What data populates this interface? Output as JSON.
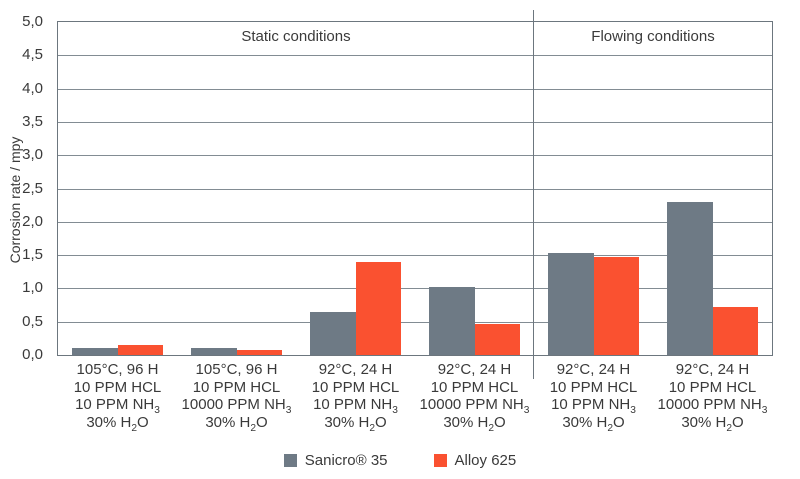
{
  "chart_data": {
    "type": "bar",
    "title": "",
    "ylabel": "Corrosion rate / mpy",
    "xlabel": "",
    "ylim": [
      0,
      5
    ],
    "ytick_step": 0.5,
    "grid": true,
    "legend_position": "bottom",
    "yticks": [
      {
        "v": 0.0,
        "label": "0,0"
      },
      {
        "v": 0.5,
        "label": "0,5"
      },
      {
        "v": 1.0,
        "label": "1,0"
      },
      {
        "v": 1.5,
        "label": "1,5"
      },
      {
        "v": 2.0,
        "label": "2,0"
      },
      {
        "v": 2.5,
        "label": "2,5"
      },
      {
        "v": 3.0,
        "label": "3,0"
      },
      {
        "v": 3.5,
        "label": "3,5"
      },
      {
        "v": 4.0,
        "label": "4,0"
      },
      {
        "v": 4.5,
        "label": "4,5"
      },
      {
        "v": 5.0,
        "label": "5,0"
      }
    ],
    "sections": [
      {
        "label": "Static conditions",
        "group_span": 4
      },
      {
        "label": "Flowing conditions",
        "group_span": 2
      }
    ],
    "categories": [
      {
        "lines": [
          "105°C, 96 H",
          "10 PPM HCL",
          "10 PPM NH₃",
          "30% H₂O"
        ]
      },
      {
        "lines": [
          "105°C, 96 H",
          "10 PPM HCL",
          "10000 PPM NH₃",
          "30% H₂O"
        ]
      },
      {
        "lines": [
          "92°C, 24 H",
          "10 PPM HCL",
          "10 PPM NH₃",
          "30% H₂O"
        ]
      },
      {
        "lines": [
          "92°C, 24 H",
          "10 PPM HCL",
          "10000 PPM NH₃",
          "30% H₂O"
        ]
      },
      {
        "lines": [
          "92°C, 24 H",
          "10 PPM HCL",
          "10 PPM NH₃",
          "30% H₂O"
        ]
      },
      {
        "lines": [
          "92°C, 24 H",
          "10 PPM HCL",
          "10000 PPM NH₃",
          "30% H₂O"
        ]
      }
    ],
    "series": [
      {
        "name": "Sanicro® 35",
        "color": "#6E7A85",
        "values": [
          0.1,
          0.1,
          0.65,
          1.02,
          1.53,
          2.3
        ]
      },
      {
        "name": "Alloy 625",
        "color": "#FA5130",
        "values": [
          0.15,
          0.07,
          1.4,
          0.46,
          1.47,
          0.72
        ]
      }
    ],
    "style": {
      "grid_color": "#828C93",
      "axis_color": "#6C767E",
      "text_color": "#3A3A3A",
      "background": "#FFFFFF"
    }
  }
}
